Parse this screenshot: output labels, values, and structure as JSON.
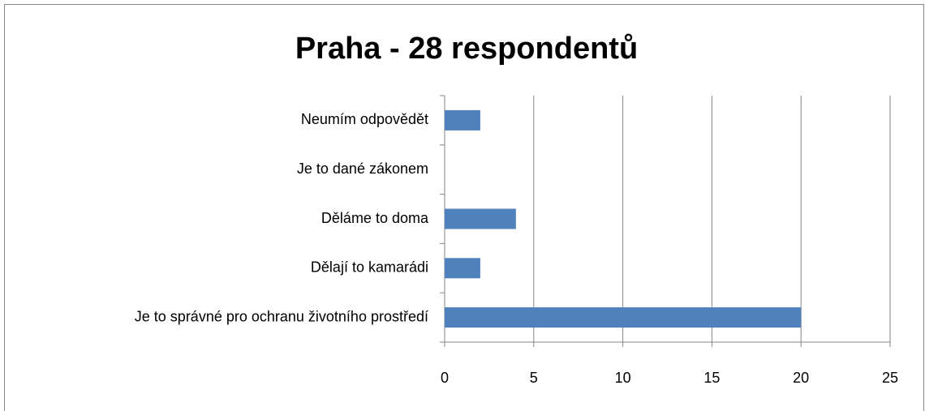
{
  "chart_data": {
    "type": "barh",
    "title": "Praha - 28 respondentů",
    "categories": [
      "Neumím odpovědět",
      "Je to dané zákonem",
      "Děláme to doma",
      "Dělají to kamarádi",
      "Je to správné pro ochranu životního prostředí"
    ],
    "values": [
      2,
      0,
      4,
      2,
      20
    ],
    "color": "#4f81bd",
    "xlim": [
      0,
      25
    ],
    "xticks": [
      0,
      5,
      10,
      15,
      20,
      25
    ],
    "grid": true
  }
}
